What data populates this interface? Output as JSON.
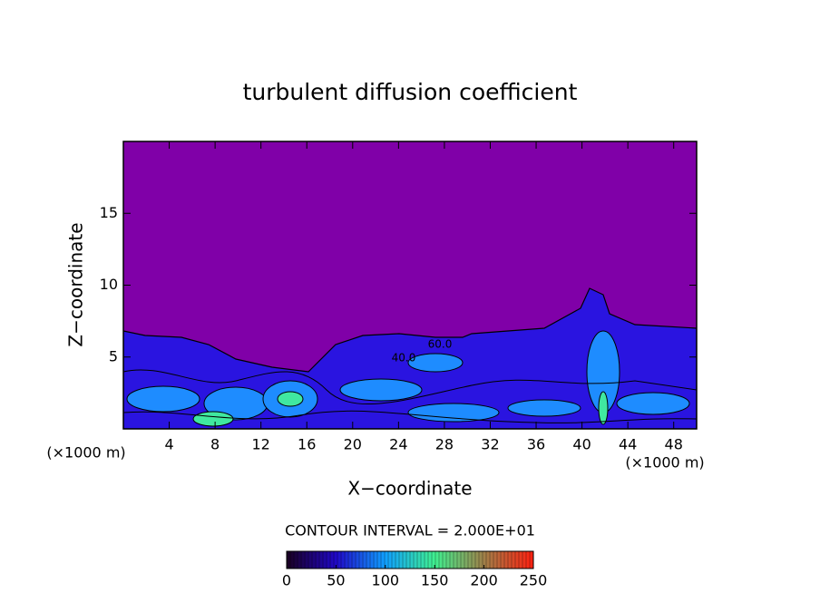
{
  "chart_data": {
    "type": "contour",
    "title": "turbulent diffusion coefficient",
    "xlabel": "X−coordinate",
    "ylabel": "Z−coordinate",
    "x_unit": "(×1000 m)",
    "y_unit": "(×1000 m)",
    "xlim": [
      0,
      50
    ],
    "xticks": [
      4,
      8,
      12,
      16,
      20,
      24,
      28,
      32,
      36,
      40,
      44,
      48
    ],
    "ylim": [
      0,
      20
    ],
    "yticks": [
      5,
      10,
      15
    ],
    "contour_interval": "CONTOUR INTERVAL = 2.000E+01",
    "contour_labels": [
      "60.0",
      "40.0"
    ],
    "clim": [
      0,
      250
    ],
    "cticks": [
      0,
      50,
      100,
      150,
      200,
      250
    ],
    "colormap": [
      "#1a0020",
      "#2008c8",
      "#10a0ff",
      "#40f090",
      "#a08048",
      "#ff2010"
    ]
  }
}
